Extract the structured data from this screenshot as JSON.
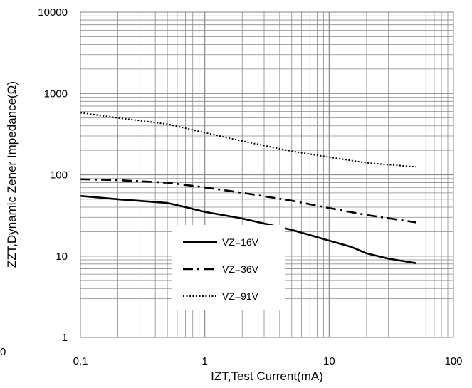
{
  "chart_data": {
    "type": "line",
    "xlabel": "IZT,Test Current(mA)",
    "ylabel": "ZZT,Dynamic Zener Impedance(Ω)",
    "xscale": "log",
    "yscale": "log",
    "xlim": [
      0.1,
      100
    ],
    "ylim": [
      1,
      10000
    ],
    "x_ticks": [
      {
        "value": 0.1,
        "label": "0.1"
      },
      {
        "value": 1,
        "label": "1"
      },
      {
        "value": 10,
        "label": "10"
      },
      {
        "value": 100,
        "label": "100"
      }
    ],
    "y_ticks": [
      {
        "value": 1,
        "label": "1"
      },
      {
        "value": 10,
        "label": "10"
      },
      {
        "value": 100,
        "label": "100"
      },
      {
        "value": 1000,
        "label": "1000"
      },
      {
        "value": 10000,
        "label": "10000"
      }
    ],
    "grid": true,
    "legend_position": "lower-center",
    "series": [
      {
        "name": "VZ=16V",
        "style": "solid",
        "color": "#000000",
        "points": [
          [
            0.1,
            55
          ],
          [
            0.2,
            50
          ],
          [
            0.5,
            45
          ],
          [
            0.7,
            40
          ],
          [
            1,
            35
          ],
          [
            2,
            29
          ],
          [
            5,
            21
          ],
          [
            10,
            15.5
          ],
          [
            15,
            13
          ],
          [
            20,
            10.8
          ],
          [
            30,
            9.3
          ],
          [
            50,
            8.2
          ]
        ]
      },
      {
        "name": "VZ=36V",
        "style": "dashdot",
        "color": "#000000",
        "points": [
          [
            0.1,
            88
          ],
          [
            0.2,
            86
          ],
          [
            0.5,
            80
          ],
          [
            1,
            70
          ],
          [
            2,
            60
          ],
          [
            5,
            48
          ],
          [
            10,
            39
          ],
          [
            20,
            32
          ],
          [
            50,
            26
          ]
        ]
      },
      {
        "name": "VZ=91V",
        "style": "dotted",
        "color": "#000000",
        "points": [
          [
            0.1,
            580
          ],
          [
            0.2,
            500
          ],
          [
            0.5,
            420
          ],
          [
            1,
            330
          ],
          [
            2,
            260
          ],
          [
            5,
            195
          ],
          [
            10,
            165
          ],
          [
            20,
            140
          ],
          [
            50,
            125
          ]
        ]
      }
    ]
  },
  "stray_label": "0"
}
